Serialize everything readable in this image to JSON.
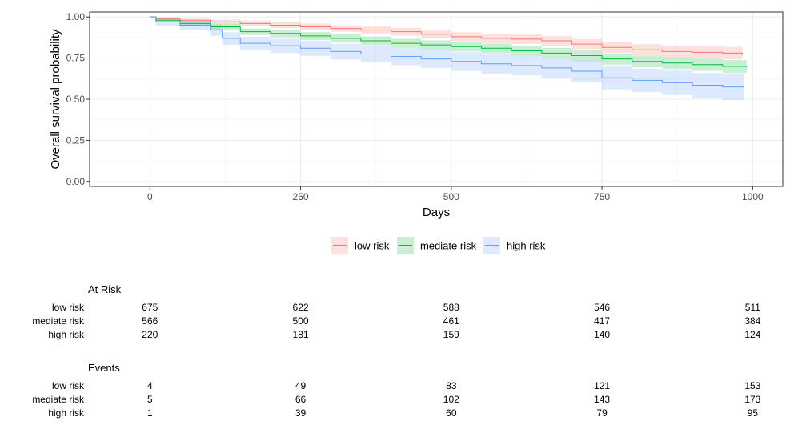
{
  "chart_data": {
    "type": "line",
    "xlabel": "Days",
    "ylabel": "Overall survival probability",
    "xlim": [
      -100,
      1050
    ],
    "ylim": [
      -0.03,
      1.03
    ],
    "x_ticks": [
      0,
      250,
      500,
      750,
      1000
    ],
    "y_ticks": [
      0.0,
      0.25,
      0.5,
      0.75,
      1.0
    ],
    "y_tick_labels": [
      "0.00",
      "0.25",
      "0.50",
      "0.75",
      "1.00"
    ],
    "grid": true,
    "legend_position": "bottom",
    "confidence_band": true,
    "series": [
      {
        "name": "low risk",
        "color": "#F8766D",
        "fill": "#F8766D",
        "x": [
          0,
          10,
          50,
          100,
          150,
          200,
          250,
          300,
          350,
          400,
          450,
          500,
          550,
          600,
          650,
          700,
          750,
          800,
          850,
          900,
          950,
          983
        ],
        "y": [
          1.0,
          0.99,
          0.98,
          0.97,
          0.96,
          0.95,
          0.94,
          0.93,
          0.92,
          0.91,
          0.895,
          0.88,
          0.87,
          0.865,
          0.855,
          0.835,
          0.815,
          0.8,
          0.79,
          0.785,
          0.78,
          0.77
        ],
        "lower": [
          1.0,
          0.985,
          0.97,
          0.955,
          0.943,
          0.932,
          0.92,
          0.91,
          0.898,
          0.886,
          0.87,
          0.853,
          0.842,
          0.836,
          0.825,
          0.804,
          0.782,
          0.766,
          0.755,
          0.749,
          0.743,
          0.73
        ],
        "upper": [
          1.0,
          0.997,
          0.99,
          0.985,
          0.977,
          0.968,
          0.96,
          0.95,
          0.942,
          0.934,
          0.92,
          0.907,
          0.898,
          0.894,
          0.885,
          0.866,
          0.848,
          0.834,
          0.825,
          0.821,
          0.817,
          0.81
        ]
      },
      {
        "name": "mediate risk",
        "color": "#00BA38",
        "fill": "#00BA38",
        "x": [
          0,
          10,
          50,
          100,
          150,
          200,
          250,
          300,
          350,
          400,
          450,
          500,
          550,
          600,
          650,
          700,
          750,
          800,
          850,
          900,
          950,
          990
        ],
        "y": [
          1.0,
          0.98,
          0.96,
          0.94,
          0.91,
          0.9,
          0.885,
          0.87,
          0.855,
          0.84,
          0.83,
          0.82,
          0.81,
          0.795,
          0.78,
          0.765,
          0.745,
          0.73,
          0.72,
          0.71,
          0.7,
          0.695
        ],
        "lower": [
          1.0,
          0.97,
          0.945,
          0.922,
          0.89,
          0.877,
          0.86,
          0.844,
          0.828,
          0.812,
          0.801,
          0.79,
          0.779,
          0.763,
          0.747,
          0.731,
          0.71,
          0.694,
          0.683,
          0.672,
          0.66,
          0.652
        ],
        "upper": [
          1.0,
          0.99,
          0.975,
          0.958,
          0.93,
          0.921,
          0.908,
          0.895,
          0.881,
          0.867,
          0.858,
          0.849,
          0.839,
          0.826,
          0.812,
          0.798,
          0.779,
          0.765,
          0.756,
          0.747,
          0.738,
          0.735
        ]
      },
      {
        "name": "high risk",
        "color": "#619CFF",
        "fill": "#619CFF",
        "x": [
          0,
          10,
          50,
          100,
          120,
          150,
          200,
          250,
          300,
          350,
          400,
          450,
          500,
          550,
          600,
          650,
          700,
          750,
          800,
          850,
          900,
          950,
          985
        ],
        "y": [
          1.0,
          0.97,
          0.95,
          0.92,
          0.87,
          0.84,
          0.825,
          0.81,
          0.79,
          0.775,
          0.76,
          0.745,
          0.73,
          0.715,
          0.705,
          0.69,
          0.67,
          0.63,
          0.615,
          0.6,
          0.585,
          0.575,
          0.57
        ],
        "lower": [
          1.0,
          0.948,
          0.921,
          0.885,
          0.83,
          0.799,
          0.781,
          0.764,
          0.741,
          0.724,
          0.707,
          0.69,
          0.672,
          0.655,
          0.644,
          0.626,
          0.602,
          0.56,
          0.543,
          0.525,
          0.508,
          0.495,
          0.49
        ],
        "upper": [
          1.0,
          0.99,
          0.977,
          0.952,
          0.907,
          0.88,
          0.867,
          0.854,
          0.837,
          0.824,
          0.811,
          0.798,
          0.786,
          0.773,
          0.764,
          0.752,
          0.735,
          0.698,
          0.684,
          0.673,
          0.66,
          0.652,
          0.65
        ]
      }
    ]
  },
  "risk_table": {
    "title": "At Risk",
    "time_points": [
      0,
      250,
      500,
      750,
      1000
    ],
    "rows": [
      {
        "label": "low risk",
        "values": [
          "675",
          "622",
          "588",
          "546",
          "511"
        ]
      },
      {
        "label": "mediate risk",
        "values": [
          "566",
          "500",
          "461",
          "417",
          "384"
        ]
      },
      {
        "label": "high risk",
        "values": [
          "220",
          "181",
          "159",
          "140",
          "124"
        ]
      }
    ]
  },
  "events_table": {
    "title": "Events",
    "time_points": [
      0,
      250,
      500,
      750,
      1000
    ],
    "rows": [
      {
        "label": "low risk",
        "values": [
          "4",
          "49",
          "83",
          "121",
          "153"
        ]
      },
      {
        "label": "mediate risk",
        "values": [
          "5",
          "66",
          "102",
          "143",
          "173"
        ]
      },
      {
        "label": "high risk",
        "values": [
          "1",
          "39",
          "60",
          "79",
          "95"
        ]
      }
    ]
  }
}
